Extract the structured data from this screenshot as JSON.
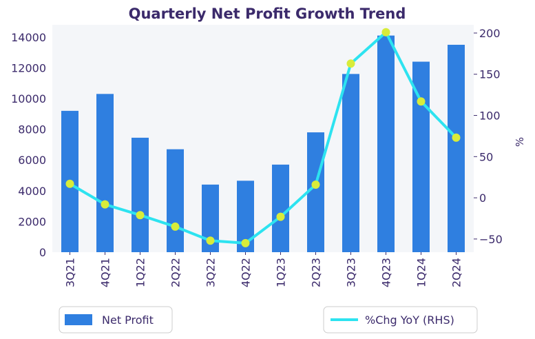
{
  "chart_data": {
    "type": "bar+line",
    "title": "Quarterly Net Profit Growth Trend",
    "categories": [
      "3Q21",
      "4Q21",
      "1Q22",
      "2Q22",
      "3Q22",
      "4Q22",
      "1Q23",
      "2Q23",
      "3Q23",
      "4Q23",
      "1Q24",
      "2Q24"
    ],
    "series": [
      {
        "name": "Net Profit",
        "type": "bar",
        "axis": "left",
        "color": "#2f7fe0",
        "values": [
          9200,
          10300,
          7450,
          6700,
          4400,
          4650,
          5700,
          7800,
          11600,
          14100,
          12400,
          13500
        ]
      },
      {
        "name": "%Chg YoY (RHS)",
        "type": "line",
        "axis": "right",
        "color": "#2de3f0",
        "marker_color": "#d8ec3a",
        "values": [
          17,
          -8,
          -21,
          -35,
          -52,
          -55,
          -23,
          16,
          163,
          201,
          117,
          73
        ]
      }
    ],
    "ylim_left": [
      0,
      14800
    ],
    "yticks_left": [
      0,
      2000,
      4000,
      6000,
      8000,
      10000,
      12000,
      14000
    ],
    "ylim_right": [
      -66,
      210
    ],
    "yticks_right": [
      -50,
      0,
      50,
      100,
      150,
      200
    ],
    "yticks_right_labels": [
      "−50",
      "0",
      "50",
      "100",
      "150",
      "200"
    ],
    "ylabel_right": "%",
    "xlabel": "",
    "ylabel": "",
    "plot_background": "#f4f6f9",
    "legend": [
      "Net Profit",
      "%Chg YoY (RHS)"
    ]
  }
}
